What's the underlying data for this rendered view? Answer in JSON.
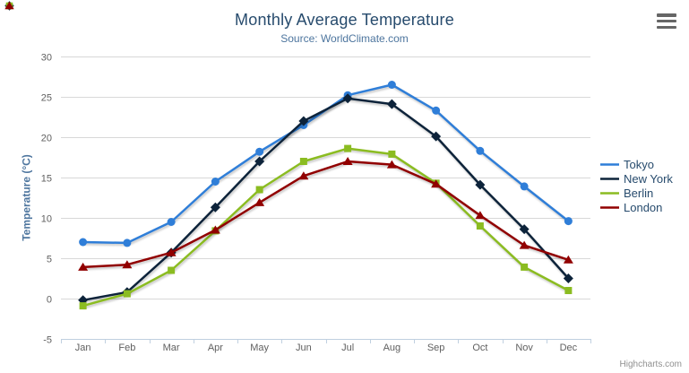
{
  "header": {
    "export_menu_icon": "hamburger-icon"
  },
  "credits": {
    "label": "Highcharts.com"
  },
  "colors": {
    "title": "#274b6d",
    "subtitle": "#4d759e",
    "axis_title": "#4d759e",
    "tick_label": "#606060",
    "gridline": "#d8d8d8",
    "axis_line": "#c0d0e0",
    "credits": "#909090",
    "export_icon": "#666666"
  },
  "chart_data": {
    "type": "line",
    "title": "Monthly Average Temperature",
    "subtitle": "Source: WorldClimate.com",
    "categories": [
      "Jan",
      "Feb",
      "Mar",
      "Apr",
      "May",
      "Jun",
      "Jul",
      "Aug",
      "Sep",
      "Oct",
      "Nov",
      "Dec"
    ],
    "series": [
      {
        "name": "Tokyo",
        "color": "#2f7ed8",
        "marker": "circle",
        "values": [
          7.0,
          6.9,
          9.5,
          14.5,
          18.2,
          21.5,
          25.2,
          26.5,
          23.3,
          18.3,
          13.9,
          9.6
        ]
      },
      {
        "name": "New York",
        "color": "#0d233a",
        "marker": "diamond",
        "values": [
          -0.2,
          0.8,
          5.7,
          11.3,
          17.0,
          22.0,
          24.8,
          24.1,
          20.1,
          14.1,
          8.6,
          2.5
        ]
      },
      {
        "name": "Berlin",
        "color": "#8bbc21",
        "marker": "square",
        "values": [
          -0.9,
          0.6,
          3.5,
          8.4,
          13.5,
          17.0,
          18.6,
          17.9,
          14.3,
          9.0,
          3.9,
          1.0
        ]
      },
      {
        "name": "London",
        "color": "#910000",
        "marker": "triangle",
        "values": [
          3.9,
          4.2,
          5.7,
          8.5,
          11.9,
          15.2,
          17.0,
          16.6,
          14.2,
          10.3,
          6.6,
          4.8
        ]
      }
    ],
    "xlabel": "",
    "ylabel": "Temperature (°C)",
    "ylim": [
      -5,
      30
    ],
    "ytick_interval": 5,
    "grid": true,
    "legend_position": "right"
  }
}
